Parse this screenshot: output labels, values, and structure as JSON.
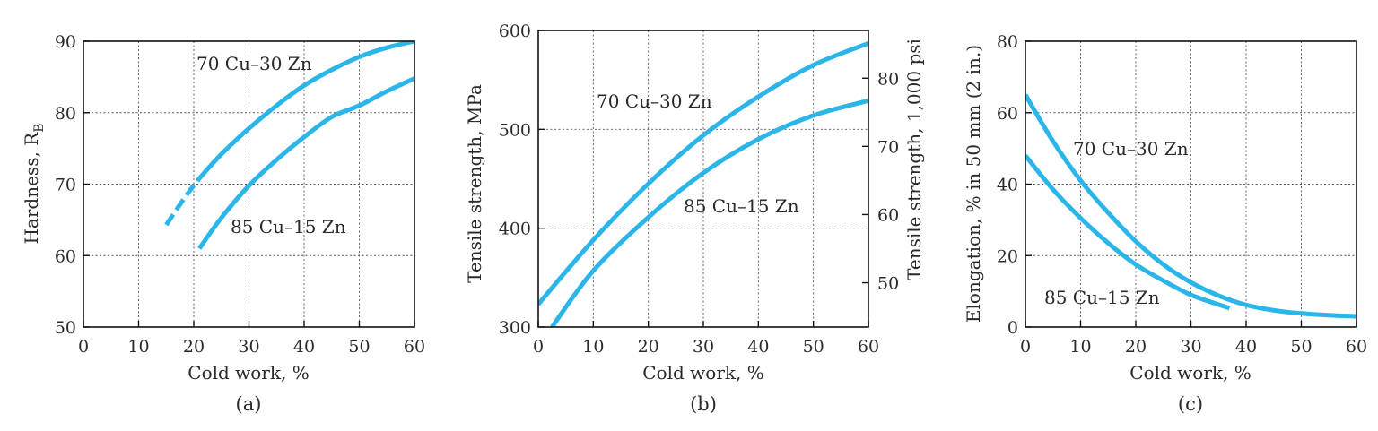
{
  "figure": {
    "accent_color": "#2cb5e8"
  },
  "chart_data": [
    {
      "type": "line",
      "panel_label": "(a)",
      "xlabel": "Cold work, %",
      "ylabel_main": "Hardness, R",
      "ylabel_sub": "B",
      "xlim": [
        0,
        60
      ],
      "ylim": [
        50,
        90
      ],
      "xticks": [
        "0",
        "10",
        "20",
        "30",
        "40",
        "50",
        "60"
      ],
      "yticks": [
        "50",
        "60",
        "70",
        "80",
        "90"
      ],
      "grid": true,
      "series": [
        {
          "name": "70 Cu–30 Zn",
          "dashed_segment": {
            "x": [
              15,
              17,
              19,
              21
            ],
            "y": [
              64.3,
              66.6,
              68.8,
              70.8
            ]
          },
          "x": [
            21,
            25,
            30,
            35,
            40,
            45,
            50,
            55,
            60
          ],
          "y": [
            70.8,
            74.2,
            77.8,
            81.0,
            83.8,
            86.0,
            87.8,
            89.1,
            90.0
          ]
        },
        {
          "name": "85 Cu–15 Zn",
          "x": [
            21,
            25,
            30,
            35,
            40,
            45,
            50,
            55,
            60
          ],
          "y": [
            61.0,
            65.3,
            69.8,
            73.4,
            76.6,
            79.4,
            81.0,
            83.0,
            84.8
          ]
        }
      ]
    },
    {
      "type": "line",
      "panel_label": "(b)",
      "xlabel": "Cold work, %",
      "ylabel": "Tensile strength, MPa",
      "ylabel_right": "Tensile strength, 1,000 psi",
      "xlim": [
        0,
        60
      ],
      "ylim": [
        300,
        600
      ],
      "ylim_right_psi": [
        43.5,
        87.0
      ],
      "xticks": [
        "0",
        "10",
        "20",
        "30",
        "40",
        "50",
        "60"
      ],
      "yticks": [
        "300",
        "400",
        "500",
        "600"
      ],
      "yticks_right": [
        "50",
        "60",
        "70",
        "80"
      ],
      "grid": true,
      "series": [
        {
          "name": "70 Cu–30 Zn",
          "x": [
            0,
            10,
            20,
            30,
            40,
            50,
            60
          ],
          "y": [
            323,
            388,
            445,
            494,
            533,
            565,
            587
          ]
        },
        {
          "name": "85 Cu–15 Zn",
          "x": [
            2.5,
            10,
            20,
            30,
            40,
            50,
            60
          ],
          "y": [
            300,
            357,
            411,
            456,
            490,
            514,
            529
          ]
        }
      ]
    },
    {
      "type": "line",
      "panel_label": "(c)",
      "xlabel": "Cold work, %",
      "ylabel": "Elongation, % in 50 mm (2 in.)",
      "xlim": [
        0,
        60
      ],
      "ylim": [
        0,
        80
      ],
      "xticks": [
        "0",
        "10",
        "20",
        "30",
        "40",
        "50",
        "60"
      ],
      "yticks": [
        "0",
        "20",
        "40",
        "60",
        "80"
      ],
      "grid": true,
      "series": [
        {
          "name": "70 Cu–30 Zn",
          "x": [
            0,
            5,
            10,
            15,
            20,
            25,
            30,
            35,
            40,
            45,
            50,
            55,
            60
          ],
          "y": [
            65,
            52,
            41,
            32,
            24,
            17.5,
            12.5,
            8.8,
            6.2,
            4.7,
            3.8,
            3.3,
            3.0
          ]
        },
        {
          "name": "85 Cu–15 Zn",
          "x": [
            0,
            5,
            10,
            15,
            20,
            25,
            30,
            35,
            37
          ],
          "y": [
            48,
            38.5,
            30.5,
            23.5,
            17.5,
            13,
            9,
            6.3,
            5.3
          ]
        }
      ]
    }
  ]
}
